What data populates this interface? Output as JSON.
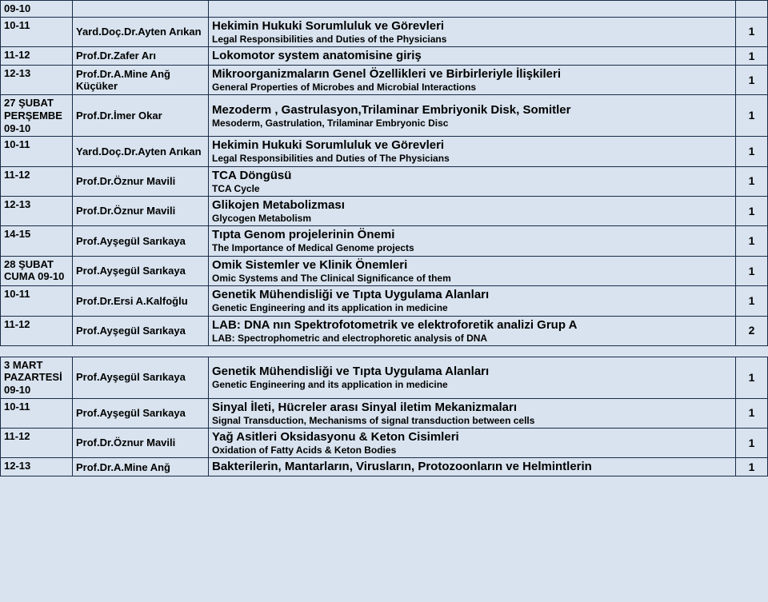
{
  "rows": [
    {
      "time": "09-10",
      "instructor": "",
      "title": "",
      "sub": "",
      "num": ""
    },
    {
      "time": "10-11",
      "instructor": "Yard.Doç.Dr.Ayten Arıkan",
      "title": "Hekimin Hukuki Sorumluluk ve Görevleri",
      "sub": "Legal Responsibilities and Duties of the Physicians",
      "num": "1"
    },
    {
      "time": "11-12",
      "instructor": "Prof.Dr.Zafer Arı",
      "title": "Lokomotor system anatomisine giriş",
      "sub": "",
      "num": "1"
    },
    {
      "time": "12-13",
      "instructor": "Prof.Dr.A.Mine Anğ Küçüker",
      "title": "Mikroorganizmaların Genel Özellikleri ve Birbirleriyle İlişkileri",
      "sub": "General Properties of Microbes and Microbial Interactions",
      "num": "1"
    },
    {
      "time": "27 ŞUBAT PERŞEMBE 09-10",
      "instructor": "Prof.Dr.İmer Okar",
      "title": "Mezoderm , Gastrulasyon,Trilaminar Embriyonik Disk, Somitler",
      "sub": "Mesoderm, Gastrulation, Trilaminar Embryonic Disc",
      "num": "1"
    },
    {
      "time": "10-11",
      "instructor": "Yard.Doç.Dr.Ayten Arıkan",
      "title": "Hekimin Hukuki Sorumluluk ve Görevleri",
      "sub": "Legal Responsibilities and Duties of The Physicians",
      "num": "1"
    },
    {
      "time": "11-12",
      "instructor": "Prof.Dr.Öznur Mavili",
      "title": "TCA Döngüsü",
      "sub": "TCA Cycle",
      "num": "1"
    },
    {
      "time": "12-13",
      "instructor": "Prof.Dr.Öznur Mavili",
      "title": "Glikojen Metabolizması",
      "sub": "Glycogen Metabolism",
      "num": "1"
    },
    {
      "time": "14-15",
      "instructor": "Prof.Ayşegül Sarıkaya",
      "title": "Tıpta Genom projelerinin Önemi",
      "sub": "The Importance of Medical Genome projects",
      "num": "1"
    },
    {
      "time": "28 ŞUBAT CUMA 09-10",
      "instructor": "Prof.Ayşegül Sarıkaya",
      "title": "Omik Sistemler ve Klinik Önemleri",
      "sub": "Omic Systems and The Clinical Significance of them",
      "num": "1"
    },
    {
      "time": "10-11",
      "instructor": "Prof.Dr.Ersi A.Kalfoğlu",
      "title": "Genetik Mühendisliği ve Tıpta Uygulama Alanları",
      "sub": "Genetic Engineering and its application in medicine",
      "num": "1"
    },
    {
      "time": "11-12",
      "instructor": "Prof.Ayşegül Sarıkaya",
      "title": "LAB:  DNA nın Spektrofotometrik ve elektroforetik analizi   Grup A",
      "sub": "LAB: Spectrophometric and electrophoretic analysis of DNA",
      "num": "2"
    },
    {
      "time": "__SPACER__",
      "instructor": "",
      "title": "",
      "sub": "",
      "num": ""
    },
    {
      "time": "3 MART PAZARTESİ 09-10",
      "instructor": "Prof.Ayşegül Sarıkaya",
      "title": "Genetik Mühendisliği ve Tıpta Uygulama Alanları",
      "sub": "Genetic Engineering and its application in medicine",
      "num": "1"
    },
    {
      "time": "10-11",
      "instructor": "Prof.Ayşegül Sarıkaya",
      "title": "Sinyal İleti, Hücreler arası Sinyal iletim Mekanizmaları",
      "sub": "Signal Transduction, Mechanisms of signal transduction between cells",
      "num": "1"
    },
    {
      "time": "11-12",
      "instructor": "Prof.Dr.Öznur Mavili",
      "title": "Yağ Asitleri Oksidasyonu & Keton Cisimleri",
      "sub": "Oxidation of Fatty Acids & Keton Bodies",
      "num": "1"
    },
    {
      "time": "12-13",
      "instructor": "Prof.Dr.A.Mine Anğ",
      "title": "Bakterilerin, Mantarların, Virusların, Protozoonların ve Helmintlerin",
      "sub": "",
      "num": "1"
    }
  ]
}
